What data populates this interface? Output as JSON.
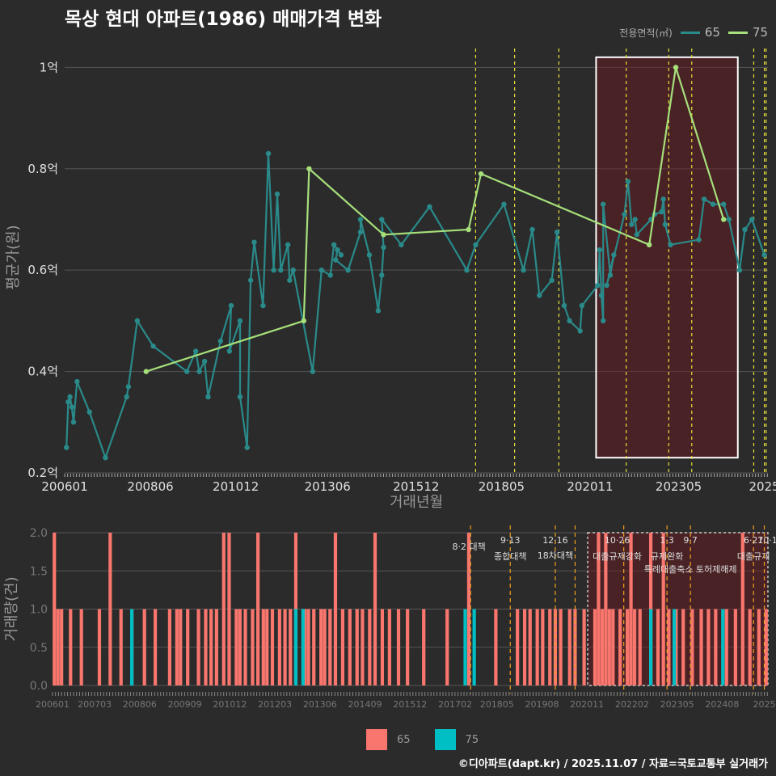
{
  "title": "목상 현대 아파트(1986) 매매가격 변화",
  "legend": {
    "title": "전용면적(㎡)",
    "items": [
      {
        "label": "65",
        "color": "#2a8a8a"
      },
      {
        "label": "75",
        "color": "#a6e07a"
      }
    ]
  },
  "bar_legend": [
    {
      "label": "65",
      "color": "#f8766d"
    },
    {
      "label": "75",
      "color": "#00bfc4"
    }
  ],
  "credit": "©디아파트(dapt.kr) / 2025.11.07 / 자료=국토교통부 실거래가",
  "chart_data": [
    {
      "type": "line",
      "title": "목상 현대 아파트(1986) 매매가격 변화",
      "xlabel": "거래년월",
      "ylabel": "평균가(원)",
      "xlim": [
        2006.0,
        2025.85
      ],
      "ylim": [
        0.2,
        1.05
      ],
      "x_ticks": [
        {
          "x": 2006.0,
          "label": "200601"
        },
        {
          "x": 2008.42,
          "label": "200806"
        },
        {
          "x": 2010.83,
          "label": "201012"
        },
        {
          "x": 2013.42,
          "label": "201306"
        },
        {
          "x": 2015.92,
          "label": "201512"
        },
        {
          "x": 2018.33,
          "label": "201805"
        },
        {
          "x": 2020.83,
          "label": "202011"
        },
        {
          "x": 2023.33,
          "label": "202305"
        },
        {
          "x": 2025.75,
          "label": "2025"
        }
      ],
      "y_ticks": [
        {
          "y": 0.2,
          "label": "0.2억"
        },
        {
          "y": 0.4,
          "label": "0.4억"
        },
        {
          "y": 0.6,
          "label": "0.6억"
        },
        {
          "y": 0.8,
          "label": "0.8억"
        },
        {
          "y": 1.0,
          "label": "1억"
        }
      ],
      "highlight": {
        "x0": 2021.0,
        "x1": 2025.0,
        "y0": 0.23,
        "y1": 1.02
      },
      "policy_lines": [
        2017.6,
        2018.7,
        2019.95,
        2021.85,
        2023.05,
        2023.7,
        2025.75,
        2025.45,
        2025.8
      ],
      "series": [
        {
          "name": "65",
          "color": "#2a8a8a",
          "points": [
            [
              2006.05,
              0.25
            ],
            [
              2006.1,
              0.34
            ],
            [
              2006.15,
              0.35
            ],
            [
              2006.2,
              0.33
            ],
            [
              2006.25,
              0.3
            ],
            [
              2006.35,
              0.38
            ],
            [
              2006.7,
              0.32
            ],
            [
              2007.15,
              0.23
            ],
            [
              2007.75,
              0.35
            ],
            [
              2007.8,
              0.37
            ],
            [
              2008.05,
              0.5
            ],
            [
              2008.5,
              0.45
            ],
            [
              2009.45,
              0.4
            ],
            [
              2009.7,
              0.44
            ],
            [
              2009.8,
              0.4
            ],
            [
              2009.95,
              0.42
            ],
            [
              2010.05,
              0.35
            ],
            [
              2010.4,
              0.46
            ],
            [
              2010.7,
              0.53
            ],
            [
              2010.65,
              0.44
            ],
            [
              2010.95,
              0.5
            ],
            [
              2010.95,
              0.35
            ],
            [
              2011.15,
              0.25
            ],
            [
              2011.25,
              0.58
            ],
            [
              2011.35,
              0.655
            ],
            [
              2011.6,
              0.53
            ],
            [
              2011.75,
              0.83
            ],
            [
              2011.9,
              0.6
            ],
            [
              2012.0,
              0.75
            ],
            [
              2012.1,
              0.6
            ],
            [
              2012.3,
              0.65
            ],
            [
              2012.35,
              0.58
            ],
            [
              2012.45,
              0.6
            ],
            [
              2013.0,
              0.4
            ],
            [
              2013.25,
              0.6
            ],
            [
              2013.5,
              0.59
            ],
            [
              2013.6,
              0.65
            ],
            [
              2013.8,
              0.63
            ],
            [
              2013.7,
              0.64
            ],
            [
              2013.65,
              0.62
            ],
            [
              2014.0,
              0.6
            ],
            [
              2014.35,
              0.675
            ],
            [
              2014.35,
              0.7
            ],
            [
              2014.6,
              0.63
            ],
            [
              2014.85,
              0.52
            ],
            [
              2014.95,
              0.59
            ],
            [
              2015.0,
              0.645
            ],
            [
              2014.95,
              0.7
            ],
            [
              2015.5,
              0.65
            ],
            [
              2016.3,
              0.725
            ],
            [
              2017.35,
              0.6
            ],
            [
              2017.6,
              0.65
            ],
            [
              2018.4,
              0.73
            ],
            [
              2018.95,
              0.6
            ],
            [
              2019.2,
              0.68
            ],
            [
              2019.4,
              0.55
            ],
            [
              2019.75,
              0.58
            ],
            [
              2019.9,
              0.675
            ],
            [
              2020.1,
              0.53
            ],
            [
              2020.25,
              0.5
            ],
            [
              2020.55,
              0.48
            ],
            [
              2020.6,
              0.53
            ],
            [
              2021.05,
              0.57
            ],
            [
              2021.1,
              0.64
            ],
            [
              2021.15,
              0.55
            ],
            [
              2021.2,
              0.5
            ],
            [
              2021.2,
              0.73
            ],
            [
              2021.4,
              0.59
            ],
            [
              2021.5,
              0.63
            ],
            [
              2021.3,
              0.57
            ],
            [
              2021.8,
              0.71
            ],
            [
              2021.9,
              0.775
            ],
            [
              2022.0,
              0.69
            ],
            [
              2022.1,
              0.7
            ],
            [
              2022.15,
              0.67
            ],
            [
              2022.55,
              0.7
            ],
            [
              2022.65,
              0.71
            ],
            [
              2022.85,
              0.715
            ],
            [
              2022.9,
              0.74
            ],
            [
              2022.95,
              0.69
            ],
            [
              2023.1,
              0.65
            ],
            [
              2023.9,
              0.66
            ],
            [
              2024.05,
              0.74
            ],
            [
              2024.3,
              0.73
            ],
            [
              2024.6,
              0.73
            ],
            [
              2024.75,
              0.7
            ],
            [
              2025.05,
              0.6
            ],
            [
              2025.2,
              0.68
            ],
            [
              2025.4,
              0.7
            ],
            [
              2025.75,
              0.63
            ]
          ]
        },
        {
          "name": "75",
          "color": "#a6e07a",
          "points": [
            [
              2008.3,
              0.4
            ],
            [
              2012.75,
              0.5
            ],
            [
              2012.9,
              0.8
            ],
            [
              2015.0,
              0.67
            ],
            [
              2017.4,
              0.68
            ],
            [
              2017.75,
              0.79
            ],
            [
              2022.5,
              0.65
            ],
            [
              2023.25,
              1.0
            ],
            [
              2024.6,
              0.7
            ]
          ]
        }
      ]
    },
    {
      "type": "bar",
      "ylabel": "거래량(건)",
      "xlim": [
        2006.0,
        2025.85
      ],
      "ylim": [
        0,
        2.0
      ],
      "y_ticks": [
        {
          "y": 0.0,
          "label": "0.0"
        },
        {
          "y": 0.5,
          "label": "0.5"
        },
        {
          "y": 1.0,
          "label": "1.0"
        },
        {
          "y": 1.5,
          "label": "1.5"
        },
        {
          "y": 2.0,
          "label": "2.0"
        }
      ],
      "x_ticks": [
        {
          "x": 2006.0,
          "label": "200601"
        },
        {
          "x": 2007.17,
          "label": "200703"
        },
        {
          "x": 2008.42,
          "label": "200806"
        },
        {
          "x": 2009.67,
          "label": "200909"
        },
        {
          "x": 2010.92,
          "label": "201012"
        },
        {
          "x": 2012.17,
          "label": "201203"
        },
        {
          "x": 2013.42,
          "label": "201306"
        },
        {
          "x": 2014.67,
          "label": "201409"
        },
        {
          "x": 2015.92,
          "label": "201512"
        },
        {
          "x": 2017.17,
          "label": "201702"
        },
        {
          "x": 2018.33,
          "label": "201805"
        },
        {
          "x": 2019.58,
          "label": "201908"
        },
        {
          "x": 2020.83,
          "label": "202011"
        },
        {
          "x": 2022.08,
          "label": "202202"
        },
        {
          "x": 2023.33,
          "label": "202305"
        },
        {
          "x": 2024.58,
          "label": "202408"
        },
        {
          "x": 2025.75,
          "label": "2025"
        }
      ],
      "highlight": {
        "x0": 2020.85,
        "x1": 2025.85
      },
      "policies": [
        {
          "x": 2017.6,
          "date": "",
          "name": "8·2 대책"
        },
        {
          "x": 2018.7,
          "date": "9·13",
          "name": "종합대책"
        },
        {
          "x": 2019.95,
          "date": "12·16",
          "name": "18차대책"
        },
        {
          "x": 2020.5,
          "date": "",
          "name": ""
        },
        {
          "x": 2021.85,
          "date": "10·26",
          "name": "대출규제강화"
        },
        {
          "x": 2023.05,
          "date": "1·3",
          "name": "규제완화"
        },
        {
          "x": 2023.7,
          "date": "9·7",
          "name": "특례대출축소 토허제해제"
        },
        {
          "x": 2025.45,
          "date": "6·27",
          "name": "대출규제"
        },
        {
          "x": 2025.75,
          "date": "10·1",
          "name": ""
        }
      ],
      "series": [
        {
          "name": "65",
          "color": "#f8766d",
          "bars": [
            [
              2006.05,
              2
            ],
            [
              2006.15,
              1
            ],
            [
              2006.25,
              1
            ],
            [
              2006.5,
              1
            ],
            [
              2006.8,
              1
            ],
            [
              2007.3,
              1
            ],
            [
              2007.6,
              2
            ],
            [
              2007.9,
              1
            ],
            [
              2008.2,
              1
            ],
            [
              2008.55,
              1
            ],
            [
              2008.85,
              1
            ],
            [
              2009.25,
              1
            ],
            [
              2009.45,
              1
            ],
            [
              2009.55,
              1
            ],
            [
              2009.75,
              1
            ],
            [
              2010.05,
              1
            ],
            [
              2010.25,
              1
            ],
            [
              2010.4,
              1
            ],
            [
              2010.55,
              1
            ],
            [
              2010.75,
              2
            ],
            [
              2010.9,
              2
            ],
            [
              2011.1,
              1
            ],
            [
              2011.2,
              1
            ],
            [
              2011.35,
              1
            ],
            [
              2011.55,
              1
            ],
            [
              2011.7,
              2
            ],
            [
              2011.85,
              1
            ],
            [
              2011.95,
              1
            ],
            [
              2012.1,
              1
            ],
            [
              2012.3,
              1
            ],
            [
              2012.45,
              1
            ],
            [
              2012.6,
              1
            ],
            [
              2012.75,
              2
            ],
            [
              2013.0,
              1
            ],
            [
              2013.1,
              1
            ],
            [
              2013.25,
              1
            ],
            [
              2013.45,
              1
            ],
            [
              2013.55,
              1
            ],
            [
              2013.7,
              1
            ],
            [
              2013.85,
              2
            ],
            [
              2014.05,
              1
            ],
            [
              2014.25,
              1
            ],
            [
              2014.45,
              1
            ],
            [
              2014.6,
              1
            ],
            [
              2014.8,
              1
            ],
            [
              2014.95,
              2
            ],
            [
              2015.15,
              1
            ],
            [
              2015.35,
              1
            ],
            [
              2015.6,
              1
            ],
            [
              2015.85,
              1
            ],
            [
              2016.3,
              1
            ],
            [
              2016.95,
              1
            ],
            [
              2017.55,
              2
            ],
            [
              2018.3,
              1
            ],
            [
              2018.9,
              1
            ],
            [
              2019.1,
              1
            ],
            [
              2019.25,
              1
            ],
            [
              2019.45,
              1
            ],
            [
              2019.6,
              1
            ],
            [
              2019.8,
              1
            ],
            [
              2019.95,
              1
            ],
            [
              2020.1,
              1
            ],
            [
              2020.35,
              1
            ],
            [
              2020.5,
              1
            ],
            [
              2020.75,
              1
            ],
            [
              2021.05,
              1
            ],
            [
              2021.15,
              2
            ],
            [
              2021.25,
              1
            ],
            [
              2021.35,
              2
            ],
            [
              2021.45,
              1
            ],
            [
              2021.55,
              1
            ],
            [
              2021.75,
              1
            ],
            [
              2021.95,
              1
            ],
            [
              2022.05,
              2
            ],
            [
              2022.15,
              1
            ],
            [
              2022.3,
              1
            ],
            [
              2022.6,
              2
            ],
            [
              2022.8,
              1
            ],
            [
              2022.95,
              2
            ],
            [
              2023.1,
              1
            ],
            [
              2023.3,
              1
            ],
            [
              2023.5,
              1
            ],
            [
              2023.75,
              1
            ],
            [
              2024.0,
              1
            ],
            [
              2024.2,
              1
            ],
            [
              2024.4,
              1
            ],
            [
              2024.7,
              1
            ],
            [
              2024.95,
              1
            ],
            [
              2025.15,
              2
            ],
            [
              2025.35,
              1
            ],
            [
              2025.6,
              1
            ],
            [
              2025.8,
              1
            ]
          ]
        },
        {
          "name": "75",
          "color": "#00bfc4",
          "bars": [
            [
              2008.2,
              1
            ],
            [
              2012.75,
              1
            ],
            [
              2012.95,
              1
            ],
            [
              2017.45,
              1
            ],
            [
              2017.7,
              1
            ],
            [
              2022.6,
              1
            ],
            [
              2023.25,
              1
            ],
            [
              2024.6,
              1
            ]
          ]
        }
      ]
    }
  ]
}
